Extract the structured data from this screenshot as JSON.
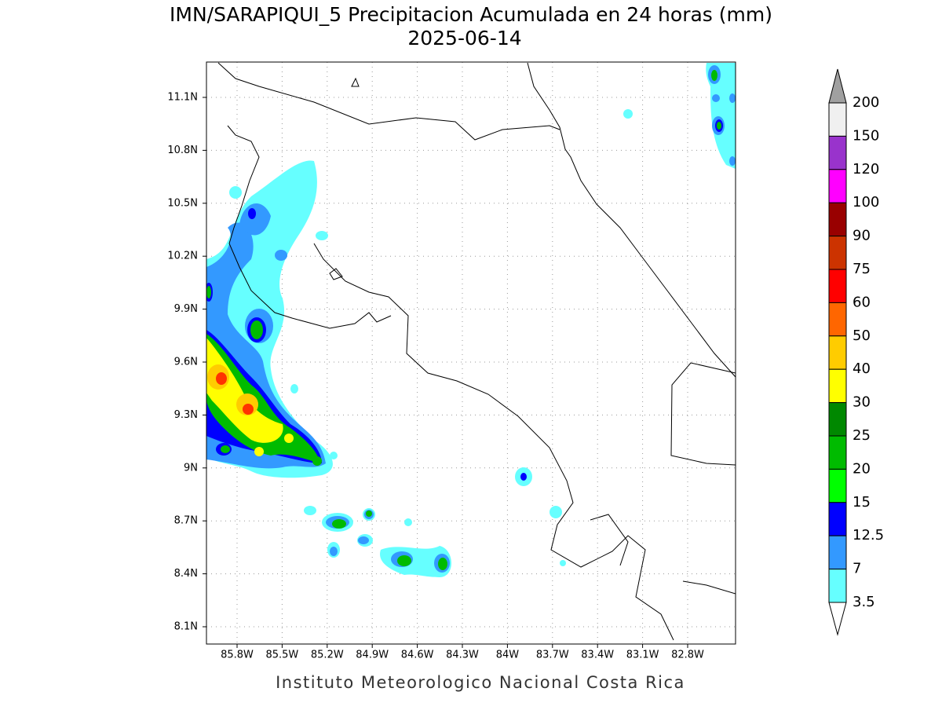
{
  "header": {
    "title": "IMN/SARAPIQUI_5 Precipitacion Acumulada en 24 horas (mm)",
    "date": "2025-06-14"
  },
  "map": {
    "lat_labels": [
      "11.1N",
      "10.8N",
      "10.5N",
      "10.2N",
      "9.9N",
      "9.6N",
      "9.3N",
      "9N",
      "8.7N",
      "8.4N",
      "8.1N"
    ],
    "lon_labels": [
      "85.8W",
      "85.5W",
      "85.2W",
      "84.9W",
      "84.6W",
      "84.3W",
      "84W",
      "83.7W",
      "83.4W",
      "83.1W",
      "82.8W"
    ]
  },
  "colorbar": {
    "labels": [
      "200",
      "150",
      "120",
      "100",
      "90",
      "75",
      "60",
      "50",
      "40",
      "30",
      "25",
      "20",
      "15",
      "12.5",
      "7",
      "3.5"
    ],
    "colors": [
      "#f0f0f0",
      "#9933cc",
      "#ff00ff",
      "#990000",
      "#cc3300",
      "#ff0000",
      "#ff6600",
      "#ffcc00",
      "#ffff00",
      "#008800",
      "#00bb00",
      "#00ff00",
      "#0000ff",
      "#3399ff",
      "#66ffff"
    ],
    "over_color": "#a0a0a0",
    "under_color": "#ffffff"
  },
  "footer": "Instituto Meteorologico Nacional Costa Rica"
}
